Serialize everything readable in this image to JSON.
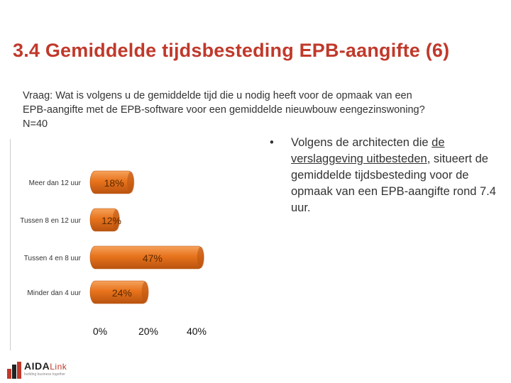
{
  "slide": {
    "title": "3.4 Gemiddelde tijdsbesteding EPB-aangifte (6)",
    "question_lines": [
      "Vraag: Wat is volgens u de gemiddelde tijd die u nodig heeft voor de opmaak van een",
      "EPB-aangifte met de EPB-software voor een gemiddelde nieuwbouw eengezinswoning?",
      "N=40"
    ],
    "bullet": {
      "prefix": "Volgens de architecten die ",
      "underlined": "de verslaggeving uitbesteden",
      "suffix": ", situeert de gemiddelde tijdsbesteding voor de opmaak van een EPB-aangifte rond 7.4 uur."
    },
    "logo": {
      "name_main": "AIDA",
      "name_accent": "Link",
      "tagline": "building business together"
    }
  },
  "colors": {
    "title": "#c0392b",
    "bar": "#e8731c",
    "bar_light": "#f5a25c",
    "bar_dark": "#b95310",
    "label": "#333333"
  },
  "chart_data": {
    "type": "bar",
    "orientation": "horizontal",
    "categories": [
      "Meer dan 12 uur",
      "Tussen 8 en 12 uur",
      "Tussen 4 en 8 uur",
      "Minder dan 4 uur"
    ],
    "values": [
      18,
      12,
      47,
      24
    ],
    "value_labels": [
      "18%",
      "12%",
      "47%",
      "24%"
    ],
    "x_ticks": [
      "0%",
      "20%",
      "40%"
    ],
    "xlim": [
      0,
      40
    ],
    "grid": false
  }
}
